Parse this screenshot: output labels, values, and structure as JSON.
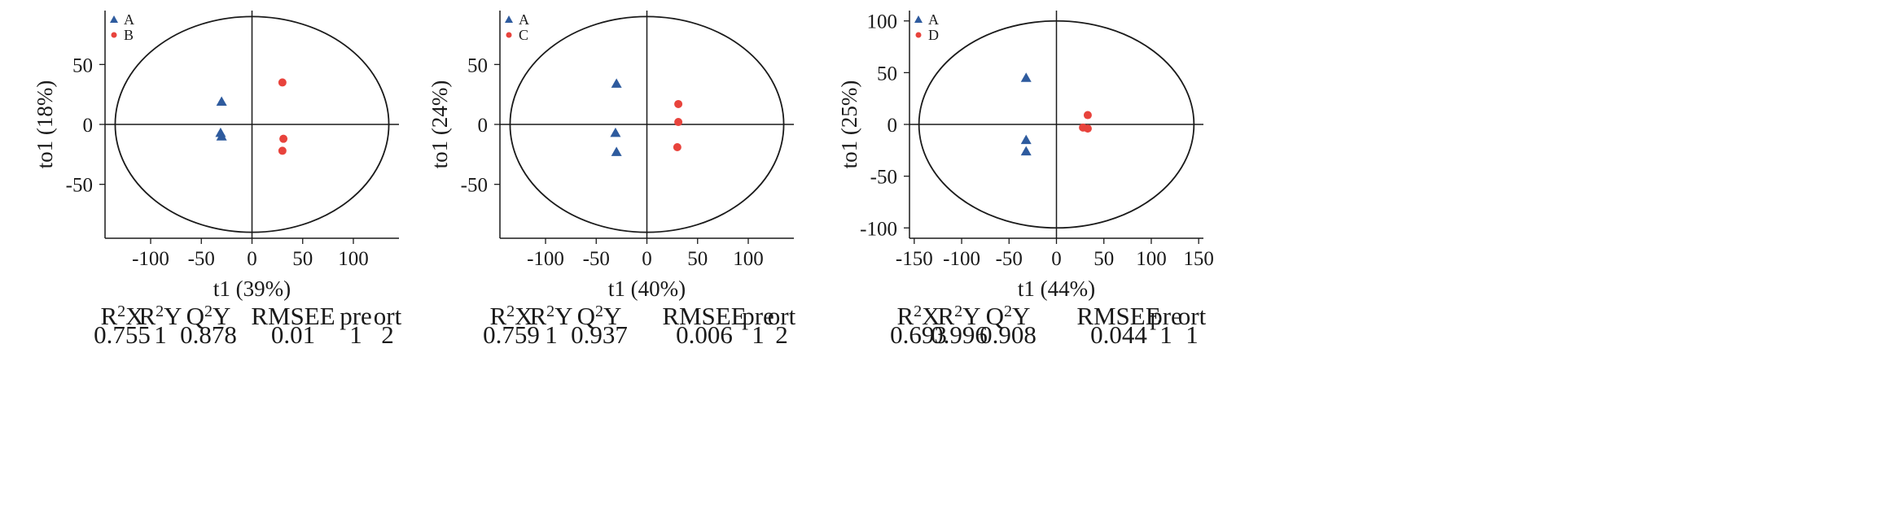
{
  "colors": {
    "group_a": "#2e5b9e",
    "group_b": "#e8433c",
    "axis": "#1a1a1a"
  },
  "chart_data": [
    {
      "type": "scatter",
      "xlabel": "t1 (39%)",
      "ylabel": "to1 (18%)",
      "xlim": [
        -145,
        145
      ],
      "ylim": [
        -95,
        95
      ],
      "xticks": [
        -100,
        -50,
        0,
        50,
        100
      ],
      "yticks": [
        50,
        0,
        -50
      ],
      "grid": false,
      "legend_position": "top-left",
      "ellipse": {
        "rx": 135,
        "ry": 90
      },
      "series": [
        {
          "name": "A",
          "marker": "triangle",
          "color": "#2e5b9e",
          "x": [
            -30,
            -31,
            -30
          ],
          "y": [
            19,
            -7,
            -10
          ]
        },
        {
          "name": "B",
          "marker": "circle",
          "color": "#e8433c",
          "x": [
            30,
            31,
            30
          ],
          "y": [
            35,
            -12,
            -22
          ]
        }
      ],
      "stats": {
        "headers": [
          "R2X",
          "R2Y",
          "Q2Y",
          "RMSEE",
          "pre",
          "ort"
        ],
        "values": [
          "0.755",
          "1",
          "0.878",
          "0.01",
          "1",
          "2"
        ]
      }
    },
    {
      "type": "scatter",
      "xlabel": "t1 (40%)",
      "ylabel": "to1 (24%)",
      "xlim": [
        -145,
        145
      ],
      "ylim": [
        -95,
        95
      ],
      "xticks": [
        -100,
        -50,
        0,
        50,
        100
      ],
      "yticks": [
        50,
        0,
        -50
      ],
      "grid": false,
      "legend_position": "top-left",
      "ellipse": {
        "rx": 135,
        "ry": 90
      },
      "series": [
        {
          "name": "A",
          "marker": "triangle",
          "color": "#2e5b9e",
          "x": [
            -30,
            -31,
            -30
          ],
          "y": [
            34,
            -7,
            -23
          ]
        },
        {
          "name": "C",
          "marker": "circle",
          "color": "#e8433c",
          "x": [
            31,
            31,
            30
          ],
          "y": [
            17,
            2,
            -19
          ]
        }
      ],
      "stats": {
        "headers": [
          "R2X",
          "R2Y",
          "Q2Y",
          "RMSEE",
          "pre",
          "ort"
        ],
        "values": [
          "0.759",
          "1",
          "0.937",
          "0.006",
          "1",
          "2"
        ]
      }
    },
    {
      "type": "scatter",
      "xlabel": "t1 (44%)",
      "ylabel": "to1 (25%)",
      "xlim": [
        -155,
        155
      ],
      "ylim": [
        -110,
        110
      ],
      "xticks": [
        -150,
        -100,
        -50,
        0,
        50,
        100,
        150
      ],
      "yticks": [
        100,
        50,
        0,
        -50,
        -100
      ],
      "grid": false,
      "legend_position": "top-left",
      "ellipse": {
        "rx": 145,
        "ry": 100
      },
      "series": [
        {
          "name": "A",
          "marker": "triangle",
          "color": "#2e5b9e",
          "x": [
            -32,
            -32,
            -32
          ],
          "y": [
            45,
            -15,
            -26
          ]
        },
        {
          "name": "D",
          "marker": "circle",
          "color": "#e8433c",
          "x": [
            33,
            28,
            33
          ],
          "y": [
            9,
            -3,
            -4
          ]
        }
      ],
      "stats": {
        "headers": [
          "R2X",
          "R2Y",
          "Q2Y",
          "RMSEE",
          "pre",
          "ort"
        ],
        "values": [
          "0.693",
          "0.996",
          "0.908",
          "0.044",
          "1",
          "1"
        ]
      }
    }
  ]
}
